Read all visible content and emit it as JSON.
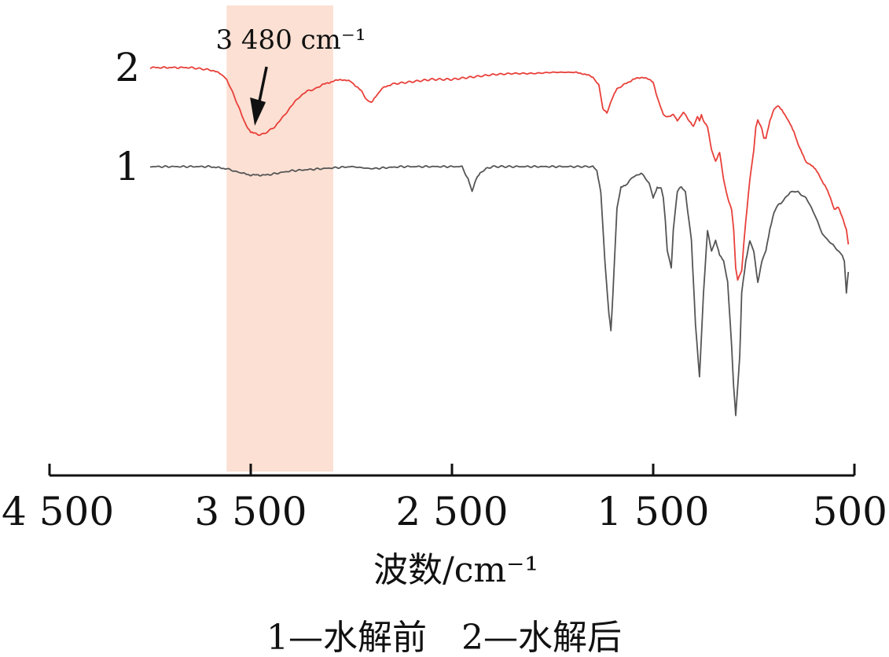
{
  "chart_data": {
    "type": "line",
    "xlabel": "波数/cm⁻¹",
    "xlim": [
      4500,
      500
    ],
    "x_ticks": [
      4500,
      3500,
      2500,
      1500,
      500
    ],
    "x_tick_labels": [
      "4 500",
      "3 500",
      "2 500",
      "1 500",
      "500"
    ],
    "grid": false,
    "highlight_band": {
      "from": 3620,
      "to": 3090,
      "color": "#fbe0d3"
    },
    "annotation": {
      "text": "3 480 cm⁻¹",
      "target_x": 3480
    },
    "caption": "1—水解前　2—水解后",
    "series": [
      {
        "name": "1",
        "color": "#555555",
        "x": [
          4000,
          3700,
          3620,
          3550,
          3500,
          3420,
          3300,
          3150,
          3000,
          2900,
          2750,
          2600,
          2450,
          2420,
          2400,
          2380,
          2360,
          2330,
          2300,
          2200,
          2050,
          1900,
          1800,
          1780,
          1760,
          1740,
          1720,
          1710,
          1700,
          1680,
          1660,
          1640,
          1600,
          1560,
          1520,
          1500,
          1480,
          1460,
          1450,
          1440,
          1430,
          1410,
          1400,
          1380,
          1370,
          1360,
          1340,
          1310,
          1290,
          1270,
          1250,
          1230,
          1210,
          1190,
          1170,
          1150,
          1130,
          1110,
          1100,
          1090,
          1070,
          1060,
          1040,
          1020,
          1000,
          980,
          960,
          940,
          920,
          900,
          880,
          860,
          820,
          780,
          740,
          700,
          660,
          600,
          560,
          550,
          540,
          530
        ],
        "y": [
          0.0,
          0.0,
          -0.01,
          -0.03,
          -0.04,
          -0.04,
          -0.02,
          -0.01,
          0.0,
          -0.01,
          0.0,
          0.0,
          0.0,
          -0.06,
          -0.12,
          -0.06,
          -0.03,
          -0.01,
          0.0,
          0.0,
          0.0,
          0.0,
          0.0,
          -0.02,
          -0.12,
          -0.45,
          -0.7,
          -0.78,
          -0.6,
          -0.2,
          -0.1,
          -0.09,
          -0.05,
          -0.03,
          -0.08,
          -0.15,
          -0.1,
          -0.1,
          -0.15,
          -0.25,
          -0.4,
          -0.48,
          -0.3,
          -0.12,
          -0.1,
          -0.1,
          -0.12,
          -0.35,
          -0.75,
          -1.0,
          -0.6,
          -0.3,
          -0.4,
          -0.35,
          -0.42,
          -0.45,
          -0.55,
          -0.85,
          -1.05,
          -1.18,
          -0.9,
          -0.6,
          -0.45,
          -0.35,
          -0.4,
          -0.55,
          -0.45,
          -0.4,
          -0.3,
          -0.22,
          -0.18,
          -0.17,
          -0.12,
          -0.12,
          -0.15,
          -0.22,
          -0.32,
          -0.38,
          -0.42,
          -0.45,
          -0.6,
          -0.5
        ]
      },
      {
        "name": "2",
        "color": "#e8403a",
        "x": [
          4000,
          3800,
          3700,
          3650,
          3620,
          3580,
          3550,
          3520,
          3500,
          3480,
          3450,
          3420,
          3380,
          3340,
          3300,
          3260,
          3220,
          3180,
          3150,
          3100,
          3050,
          3000,
          2950,
          2920,
          2900,
          2880,
          2850,
          2800,
          2700,
          2600,
          2500,
          2400,
          2300,
          2200,
          2100,
          2000,
          1900,
          1850,
          1800,
          1770,
          1750,
          1730,
          1700,
          1680,
          1650,
          1600,
          1550,
          1500,
          1480,
          1450,
          1420,
          1400,
          1380,
          1350,
          1320,
          1300,
          1280,
          1270,
          1260,
          1250,
          1230,
          1210,
          1190,
          1170,
          1150,
          1130,
          1110,
          1100,
          1090,
          1080,
          1060,
          1050,
          1040,
          1020,
          1000,
          990,
          980,
          960,
          950,
          940,
          920,
          900,
          880,
          860,
          840,
          820,
          800,
          780,
          760,
          740,
          720,
          700,
          680,
          660,
          640,
          620,
          600,
          580,
          560,
          550,
          540,
          530
        ],
        "y": [
          0.0,
          0.0,
          -0.02,
          -0.05,
          -0.1,
          -0.25,
          -0.38,
          -0.5,
          -0.55,
          -0.56,
          -0.57,
          -0.55,
          -0.5,
          -0.42,
          -0.33,
          -0.25,
          -0.2,
          -0.18,
          -0.15,
          -0.12,
          -0.1,
          -0.12,
          -0.2,
          -0.28,
          -0.3,
          -0.25,
          -0.18,
          -0.14,
          -0.12,
          -0.1,
          -0.1,
          -0.08,
          -0.06,
          -0.05,
          -0.05,
          -0.04,
          -0.04,
          -0.05,
          -0.08,
          -0.15,
          -0.35,
          -0.38,
          -0.25,
          -0.18,
          -0.15,
          -0.1,
          -0.08,
          -0.12,
          -0.25,
          -0.4,
          -0.42,
          -0.4,
          -0.45,
          -0.38,
          -0.45,
          -0.5,
          -0.42,
          -0.45,
          -0.4,
          -0.45,
          -0.5,
          -0.7,
          -0.8,
          -0.72,
          -0.95,
          -1.1,
          -1.2,
          -1.38,
          -1.7,
          -1.8,
          -1.72,
          -1.5,
          -1.3,
          -0.95,
          -0.7,
          -0.5,
          -0.45,
          -0.52,
          -0.6,
          -0.6,
          -0.45,
          -0.35,
          -0.32,
          -0.36,
          -0.42,
          -0.48,
          -0.55,
          -0.65,
          -0.72,
          -0.8,
          -0.82,
          -0.85,
          -0.9,
          -0.97,
          -1.02,
          -1.1,
          -1.2,
          -1.18,
          -1.27,
          -1.32,
          -1.38,
          -1.5
        ]
      }
    ]
  }
}
